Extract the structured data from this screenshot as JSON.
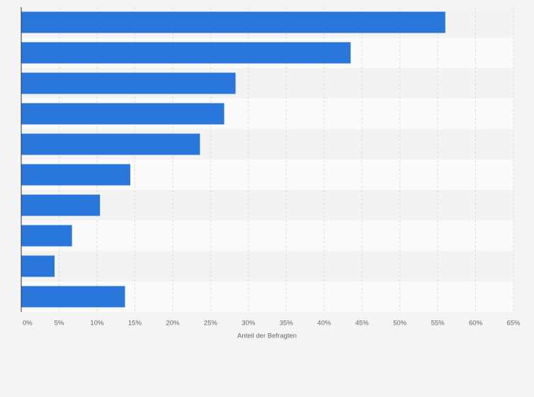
{
  "chart_data": {
    "type": "bar",
    "orientation": "horizontal",
    "categories": [
      null,
      null,
      null,
      null,
      null,
      null,
      null,
      null,
      null,
      null
    ],
    "values": [
      56,
      43.5,
      28.3,
      26.8,
      23.6,
      14.4,
      10.4,
      6.7,
      4.4,
      13.7
    ],
    "color": "#2a77dc",
    "xlabel": "Anteil der Befragten",
    "xlim": [
      0,
      65
    ],
    "xticks": [
      {
        "value": 0,
        "label": "0%"
      },
      {
        "value": 5,
        "label": "5%"
      },
      {
        "value": 10,
        "label": "10%"
      },
      {
        "value": 15,
        "label": "15%"
      },
      {
        "value": 20,
        "label": "20%"
      },
      {
        "value": 25,
        "label": "25%"
      },
      {
        "value": 30,
        "label": "30%"
      },
      {
        "value": 35,
        "label": "35%"
      },
      {
        "value": 40,
        "label": "40%"
      },
      {
        "value": 45,
        "label": "45%"
      },
      {
        "value": 50,
        "label": "50%"
      },
      {
        "value": 55,
        "label": "55%"
      },
      {
        "value": 60,
        "label": "60%"
      },
      {
        "value": 65,
        "label": "65%"
      }
    ],
    "grid": true
  }
}
